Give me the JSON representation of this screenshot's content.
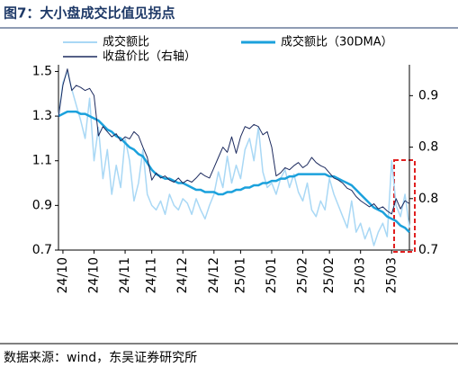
{
  "chart_data": {
    "type": "line",
    "title": "图7：大小盘成交比值见拐点",
    "source": "数据来源：wind，东吴证券研究所",
    "xlim": [
      0,
      79
    ],
    "xticks": [
      {
        "value": 1,
        "label": "24/10"
      },
      {
        "value": 8,
        "label": "24/10"
      },
      {
        "value": 15,
        "label": "24/11"
      },
      {
        "value": 21,
        "label": "24/11"
      },
      {
        "value": 28,
        "label": "24/12"
      },
      {
        "value": 35,
        "label": "24/12"
      },
      {
        "value": 41,
        "label": "25/01"
      },
      {
        "value": 48,
        "label": "25/01"
      },
      {
        "value": 55,
        "label": "25/02"
      },
      {
        "value": 61,
        "label": "25/02"
      },
      {
        "value": 68,
        "label": "25/03"
      },
      {
        "value": 75,
        "label": "25/03"
      }
    ],
    "ylim": [
      0.7,
      1.53
    ],
    "yticks": [
      0.7,
      0.9,
      1.1,
      1.3,
      1.5
    ],
    "y2lim": [
      0.7,
      0.88
    ],
    "y2ticks": [
      0.7,
      {
        "value": 0.75,
        "label": "0.8"
      },
      {
        "value": 0.8,
        "label": "0.8"
      },
      {
        "value": 0.85,
        "label": "0.9"
      }
    ],
    "series": [
      {
        "name": "成交额比",
        "color": "#a9d8f5",
        "width": 1.5,
        "values": [
          1.3,
          1.45,
          1.5,
          1.42,
          1.35,
          1.28,
          1.2,
          1.38,
          1.1,
          1.25,
          1.02,
          1.15,
          0.95,
          1.08,
          0.98,
          1.2,
          1.1,
          0.92,
          1.0,
          1.15,
          0.95,
          0.9,
          0.88,
          0.92,
          0.86,
          0.95,
          0.9,
          0.88,
          0.93,
          0.91,
          0.86,
          0.93,
          0.88,
          0.84,
          0.9,
          0.95,
          1.05,
          0.98,
          1.12,
          1.0,
          1.08,
          1.02,
          1.15,
          1.2,
          1.1,
          1.25,
          1.05,
          0.98,
          1.0,
          0.95,
          1.02,
          1.06,
          0.98,
          1.04,
          0.96,
          0.92,
          1.0,
          0.88,
          0.85,
          0.92,
          0.88,
          1.02,
          0.95,
          0.9,
          0.85,
          0.8,
          0.92,
          0.78,
          0.82,
          0.75,
          0.8,
          0.72,
          0.78,
          0.82,
          0.76,
          1.1,
          0.9,
          0.85,
          0.95,
          0.8
        ]
      },
      {
        "name": "成交额比（30DMA）",
        "color": "#1ba1dc",
        "width": 2.5,
        "values": [
          1.3,
          1.31,
          1.32,
          1.32,
          1.32,
          1.31,
          1.31,
          1.3,
          1.29,
          1.28,
          1.26,
          1.24,
          1.23,
          1.21,
          1.2,
          1.18,
          1.16,
          1.15,
          1.13,
          1.12,
          1.09,
          1.06,
          1.04,
          1.03,
          1.02,
          1.02,
          1.01,
          1.0,
          1.0,
          0.99,
          0.98,
          0.97,
          0.97,
          0.96,
          0.96,
          0.96,
          0.95,
          0.95,
          0.96,
          0.96,
          0.97,
          0.97,
          0.98,
          0.98,
          0.99,
          0.99,
          1.0,
          1.0,
          1.01,
          1.01,
          1.02,
          1.02,
          1.03,
          1.03,
          1.04,
          1.04,
          1.04,
          1.04,
          1.04,
          1.04,
          1.04,
          1.03,
          1.03,
          1.02,
          1.01,
          1.0,
          0.99,
          0.97,
          0.95,
          0.93,
          0.91,
          0.89,
          0.88,
          0.87,
          0.85,
          0.84,
          0.83,
          0.81,
          0.8,
          0.78
        ]
      },
      {
        "name": "收盘价比（右轴）",
        "color": "#1c2a5e",
        "width": 1,
        "axis": "y2",
        "values": [
          0.829,
          0.86,
          0.876,
          0.855,
          0.86,
          0.858,
          0.855,
          0.857,
          0.85,
          0.811,
          0.82,
          0.815,
          0.81,
          0.813,
          0.806,
          0.81,
          0.808,
          0.815,
          0.811,
          0.8,
          0.79,
          0.768,
          0.775,
          0.77,
          0.772,
          0.768,
          0.766,
          0.77,
          0.765,
          0.768,
          0.766,
          0.77,
          0.775,
          0.772,
          0.77,
          0.78,
          0.79,
          0.8,
          0.795,
          0.81,
          0.794,
          0.81,
          0.82,
          0.818,
          0.822,
          0.82,
          0.812,
          0.815,
          0.8,
          0.772,
          0.775,
          0.78,
          0.778,
          0.782,
          0.785,
          0.78,
          0.783,
          0.79,
          0.785,
          0.782,
          0.78,
          0.775,
          0.77,
          0.768,
          0.765,
          0.76,
          0.758,
          0.752,
          0.748,
          0.745,
          0.742,
          0.745,
          0.74,
          0.742,
          0.738,
          0.735,
          0.75,
          0.74,
          0.748,
          0.745
        ]
      }
    ]
  }
}
